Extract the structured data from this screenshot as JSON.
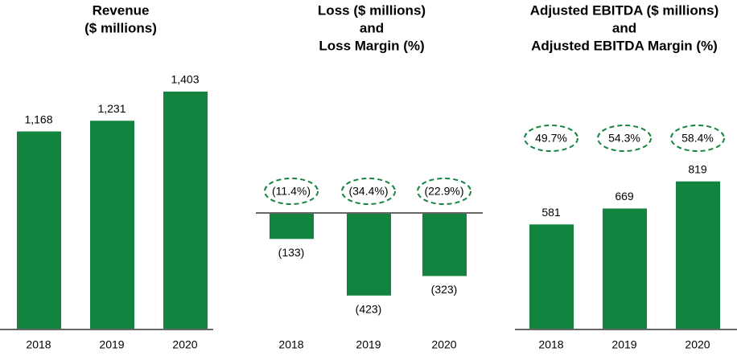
{
  "chart_data": [
    {
      "type": "bar",
      "title": [
        "Revenue",
        "($ millions)"
      ],
      "categories": [
        "2018",
        "2019",
        "2020"
      ],
      "values": [
        1168,
        1231,
        1403
      ],
      "value_labels": [
        "1,168",
        "1,231",
        "1,403"
      ],
      "color": "#13843f"
    },
    {
      "type": "bar",
      "title": [
        "Loss ($ millions)",
        "and",
        "Loss Margin (%)"
      ],
      "categories": [
        "2018",
        "2019",
        "2020"
      ],
      "values": [
        -133,
        -423,
        -323
      ],
      "value_labels": [
        "(133)",
        "(423)",
        "(323)"
      ],
      "color": "#13843f",
      "margins": [
        -11.4,
        -34.4,
        -22.9
      ],
      "margin_labels": [
        "(11.4%)",
        "(34.4%)",
        "(22.9%)"
      ]
    },
    {
      "type": "bar",
      "title": [
        "Adjusted EBITDA ($ millions)",
        "and",
        "Adjusted EBITDA Margin (%)"
      ],
      "categories": [
        "2018",
        "2019",
        "2020"
      ],
      "values": [
        581,
        669,
        819
      ],
      "color": "#13843f",
      "margins": [
        49.7,
        54.3,
        58.4
      ],
      "margin_labels": [
        "49.7%",
        "54.3%",
        "58.4%"
      ]
    }
  ]
}
